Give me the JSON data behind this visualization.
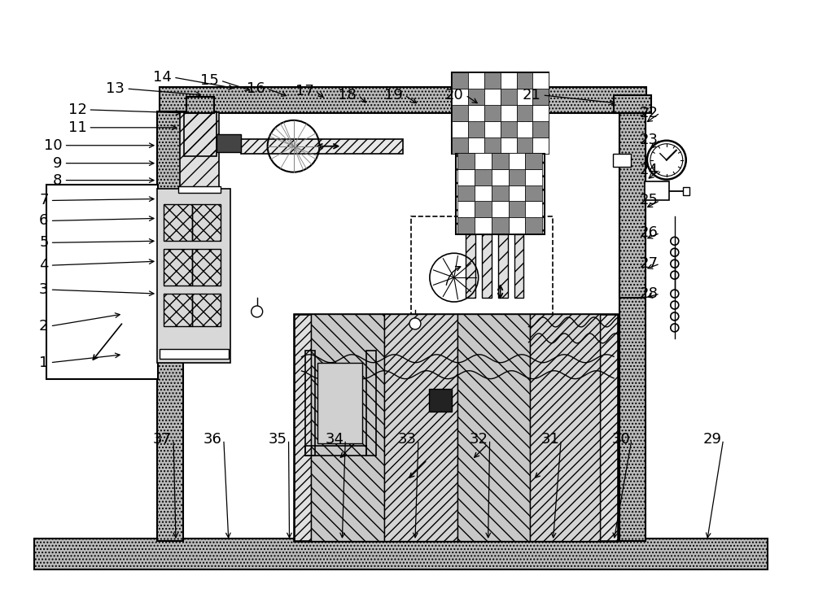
{
  "bg_color": "#ffffff",
  "fig_width": 10.0,
  "fig_height": 7.56
}
